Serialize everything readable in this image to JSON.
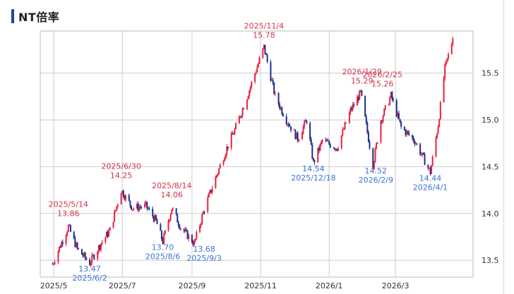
{
  "title": "NT倍率",
  "colors": {
    "up": "#e8213c",
    "down": "#1c2f8f",
    "high_label": "#d2334a",
    "low_label": "#3a73d6",
    "grid": "#cccccc",
    "axis_text": "#333333",
    "accent": "#1f3fa8"
  },
  "chart_data": {
    "type": "candlestick",
    "title": "NT倍率",
    "ylim": [
      13.32,
      15.95
    ],
    "y_ticks": [
      13.5,
      14.0,
      14.5,
      15.0,
      15.5
    ],
    "y_tick_labels": [
      "13.5",
      "14.0",
      "14.5",
      "15.0",
      "15.5"
    ],
    "x_ticks": [
      "2025-05-01",
      "2025-07-01",
      "2025-09-01",
      "2025-11-01",
      "2026-01-01",
      "2026-03-01"
    ],
    "x_tick_labels": [
      "2025/5",
      "2025/7",
      "2025/9",
      "2025/11",
      "2026/1",
      "2026/3"
    ],
    "grid": true,
    "series": [
      {
        "values": [
          [
            "2025-04-30",
            13.46
          ],
          [
            "2025-05-14",
            13.86
          ],
          [
            "2025-05-22",
            13.62
          ],
          [
            "2025-06-02",
            13.47
          ],
          [
            "2025-06-12",
            13.68
          ],
          [
            "2025-06-20",
            13.82
          ],
          [
            "2025-06-30",
            14.25
          ],
          [
            "2025-07-10",
            14.06
          ],
          [
            "2025-07-22",
            14.08
          ],
          [
            "2025-07-31",
            13.92
          ],
          [
            "2025-08-06",
            13.7
          ],
          [
            "2025-08-14",
            14.06
          ],
          [
            "2025-08-22",
            13.85
          ],
          [
            "2025-09-03",
            13.68
          ],
          [
            "2025-09-12",
            14.05
          ],
          [
            "2025-09-22",
            14.38
          ],
          [
            "2025-10-02",
            14.7
          ],
          [
            "2025-10-10",
            14.92
          ],
          [
            "2025-10-20",
            15.25
          ],
          [
            "2025-11-04",
            15.78
          ],
          [
            "2025-11-14",
            15.25
          ],
          [
            "2025-11-24",
            15.0
          ],
          [
            "2025-12-04",
            14.8
          ],
          [
            "2025-12-12",
            15.0
          ],
          [
            "2025-12-18",
            14.54
          ],
          [
            "2025-12-26",
            14.78
          ],
          [
            "2026-01-08",
            14.7
          ],
          [
            "2026-01-20",
            15.1
          ],
          [
            "2026-01-29",
            15.29
          ],
          [
            "2026-02-09",
            14.52
          ],
          [
            "2026-02-16",
            15.0
          ],
          [
            "2026-02-25",
            15.26
          ],
          [
            "2026-03-06",
            14.92
          ],
          [
            "2026-03-18",
            14.78
          ],
          [
            "2026-04-01",
            14.44
          ],
          [
            "2026-04-08",
            14.95
          ],
          [
            "2026-04-14",
            15.55
          ],
          [
            "2026-04-21",
            15.87
          ]
        ]
      }
    ],
    "annotations": [
      {
        "date": "2025/5/14",
        "value": "13.86",
        "type": "high",
        "x": "2025-05-14"
      },
      {
        "date": "2025/6/2",
        "value": "13.47",
        "type": "low",
        "x": "2025-06-02"
      },
      {
        "date": "2025/6/30",
        "value": "14.25",
        "type": "high",
        "x": "2025-06-30"
      },
      {
        "date": "2025/8/14",
        "value": "14.06",
        "type": "high",
        "x": "2025-08-14"
      },
      {
        "date": "2025/8/6",
        "value": "13.70",
        "type": "low",
        "x": "2025-08-06"
      },
      {
        "date": "2025/9/3",
        "value": "13.68",
        "type": "low",
        "x": "2025-09-03"
      },
      {
        "date": "2025/11/4",
        "value": "15.78",
        "type": "high",
        "x": "2025-11-04"
      },
      {
        "date": "2025/12/18",
        "value": "14.54",
        "type": "low",
        "x": "2025-12-18"
      },
      {
        "date": "2026/1/29",
        "value": "15.29",
        "type": "high",
        "x": "2026-01-29"
      },
      {
        "date": "2026/2/25",
        "value": "15.26",
        "type": "high",
        "x": "2026-02-25"
      },
      {
        "date": "2026/2/9",
        "value": "14.52",
        "type": "low",
        "x": "2026-02-09"
      },
      {
        "date": "2026/4/1",
        "value": "14.44",
        "type": "low",
        "x": "2026-04-01"
      }
    ]
  }
}
